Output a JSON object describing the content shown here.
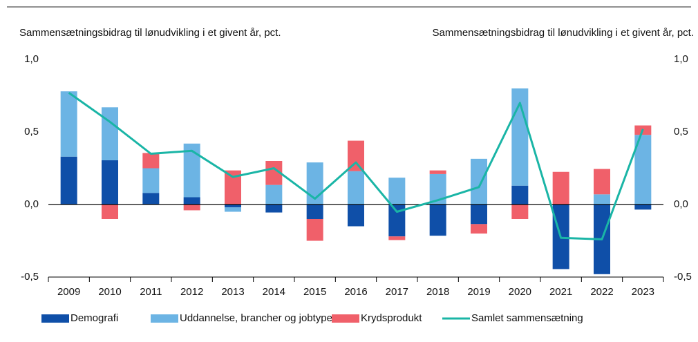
{
  "chart_data": {
    "type": "bar",
    "stacked": true,
    "y_label": "Sammensætningsbidrag til lønudvikling i et givent år, pct.",
    "y2_label": "Sammensætningsbidrag til lønudvikling i et givent år, pct.",
    "categories": [
      "2009",
      "2010",
      "2011",
      "2012",
      "2013",
      "2014",
      "2015",
      "2016",
      "2017",
      "2018",
      "2019",
      "2020",
      "2021",
      "2022",
      "2023"
    ],
    "series": [
      {
        "name": "Demografi",
        "type": "bar",
        "color": "#0f4fa8",
        "values": [
          0.33,
          0.305,
          0.08,
          0.05,
          -0.02,
          -0.055,
          -0.1,
          -0.15,
          -0.22,
          -0.215,
          -0.135,
          0.13,
          -0.445,
          -0.48,
          -0.035
        ]
      },
      {
        "name": "Uddannelse, brancher og jobtyper",
        "type": "bar",
        "color": "#6cb4e4",
        "values": [
          0.45,
          0.365,
          0.17,
          0.37,
          -0.03,
          0.135,
          0.29,
          0.23,
          0.185,
          0.21,
          0.315,
          0.67,
          0,
          0.07,
          0.48
        ]
      },
      {
        "name": "Krydsprodukt",
        "type": "bar",
        "color": "#f0606a",
        "values": [
          0,
          -0.1,
          0.105,
          -0.04,
          0.235,
          0.165,
          -0.15,
          0.21,
          -0.025,
          0.025,
          -0.065,
          -0.1,
          0.225,
          0.175,
          0.065
        ]
      },
      {
        "name": "Samlet sammensætning",
        "type": "line",
        "color": "#1ab5a6",
        "values": [
          0.77,
          0.57,
          0.35,
          0.37,
          0.19,
          0.25,
          0.04,
          0.29,
          -0.05,
          0.03,
          0.12,
          0.7,
          -0.23,
          -0.24,
          0.52
        ]
      }
    ],
    "ylim": [
      -0.5,
      1.0
    ],
    "yticks": [
      {
        "value": -0.5,
        "label": "-0,5"
      },
      {
        "value": 0,
        "label": "0,0"
      },
      {
        "value": 0.5,
        "label": "0,5"
      },
      {
        "value": 1.0,
        "label": "1,0"
      }
    ],
    "y2lim": [
      -0.5,
      1.0
    ],
    "y2ticks": [
      {
        "value": -0.5,
        "label": "-0,5"
      },
      {
        "value": 0,
        "label": "0,0"
      },
      {
        "value": 0.5,
        "label": "0,5"
      },
      {
        "value": 1.0,
        "label": "1,0"
      }
    ],
    "legend": "bottom"
  }
}
